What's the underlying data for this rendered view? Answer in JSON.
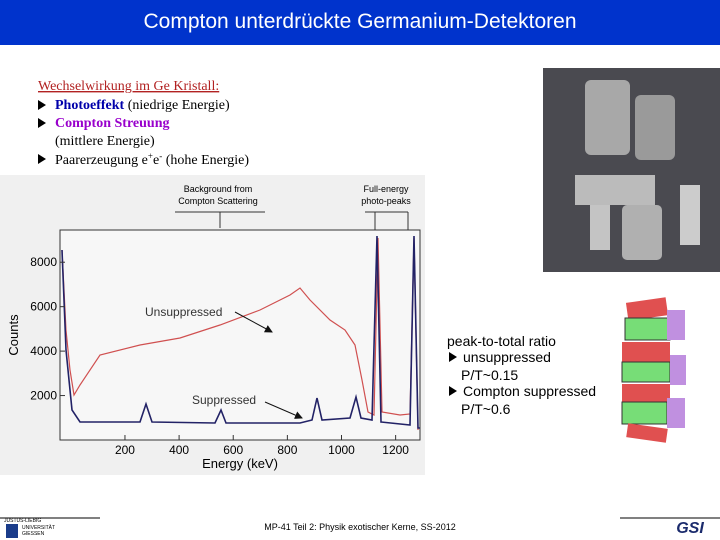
{
  "header": {
    "title": "Compton unterdrückte Germanium-Detektoren"
  },
  "bullets": {
    "heading": "Wechselwirkung im Ge Kristall:",
    "items": [
      {
        "term": "Photoeffekt",
        "note": " (niedrige Energie)"
      },
      {
        "term": "Compton Streuung",
        "note": "(mittlere Energie)"
      },
      {
        "text": "Paarerzeugung e",
        "sup1": "+",
        "mid": "e",
        "sup2": "-",
        "rest": " (hohe Energie)"
      }
    ]
  },
  "figure": {
    "ylabel": "Counts",
    "xlabel": "Energy (keV)",
    "xlim": [
      -40,
      1290
    ],
    "ylim": [
      0,
      9450
    ],
    "xticks": [
      200,
      400,
      600,
      800,
      1000,
      1200
    ],
    "yticks": [
      2000,
      4000,
      6000,
      8000
    ],
    "annotations": {
      "background": [
        "Background from",
        "Compton Scattering"
      ],
      "peaks": [
        "Full-energy",
        "photo-peaks"
      ],
      "unsuppressed": "Unsuppressed",
      "suppressed": "Suppressed"
    }
  },
  "ratio": {
    "heading": "peak-to-total ratio",
    "items": [
      {
        "label": "unsuppressed",
        "value": "P/T~0.15"
      },
      {
        "label": "Compton suppressed",
        "value": "P/T~0.6"
      }
    ]
  },
  "footer": {
    "caption": "MP-41 Teil 2: Physik exotischer Kerne, SS-2012",
    "university": [
      "JUSTUS-LIEBIG",
      "UNIVERSITÄT",
      "GIESSEN"
    ],
    "institute": "GSI"
  }
}
